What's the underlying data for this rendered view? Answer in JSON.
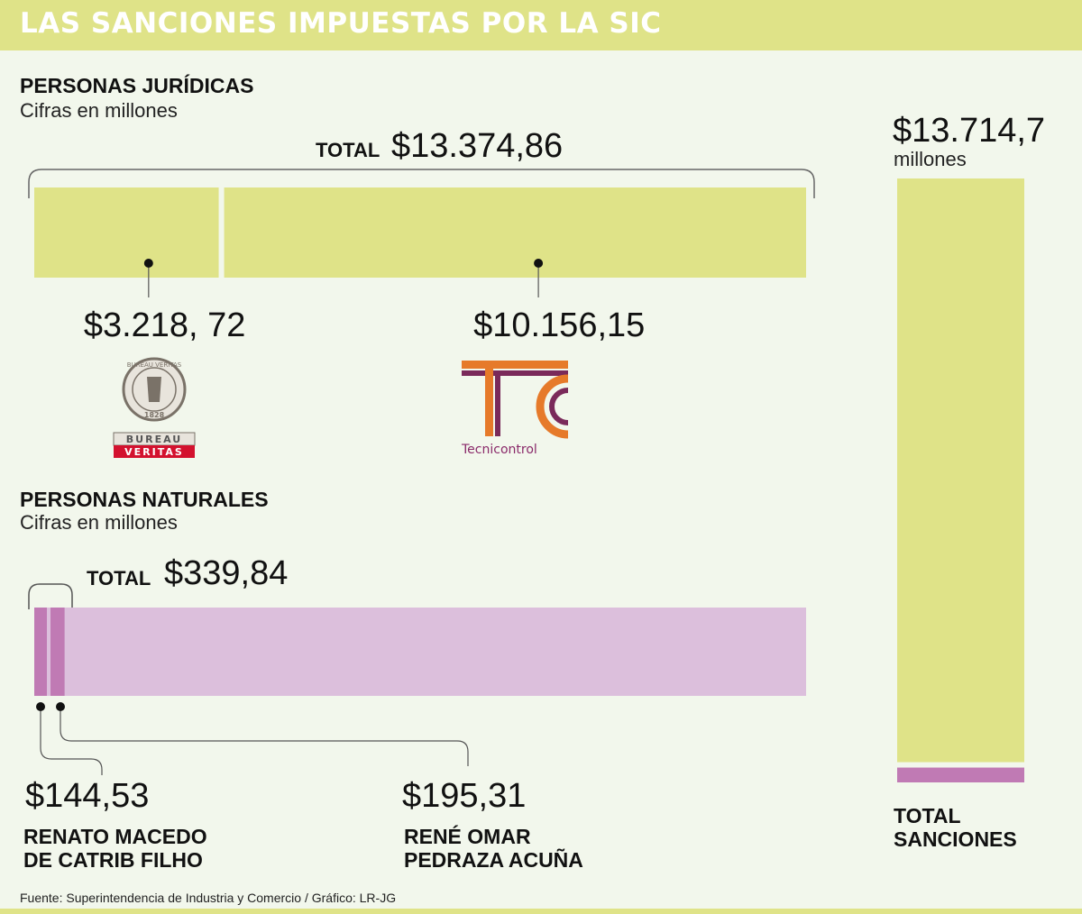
{
  "header": {
    "title": "LAS SANCIONES IMPUESTAS POR LA SIC"
  },
  "colors": {
    "green": "#dfe388",
    "purple_light": "#dcbfdc",
    "purple_dark": "#c07ab4",
    "background": "#f2f7ec"
  },
  "chart_data": [
    {
      "type": "bar",
      "title": "PERSONAS JURÍDICAS",
      "subtitle": "Cifras en millones",
      "total_label": "TOTAL",
      "total_value": "$13.374,86",
      "categories": [
        "Bureau Veritas",
        "Tecnicontrol"
      ],
      "values": [
        3218.72,
        10156.15
      ],
      "value_labels": [
        "$3.218, 72",
        "$10.156,15"
      ],
      "logos": [
        {
          "icon": "bureau-veritas-logo",
          "text_lines": [
            "BUREAU",
            "VERITAS"
          ],
          "seal_text": "BUREAU VERITAS",
          "year": "1828"
        },
        {
          "icon": "tecnicontrol-logo",
          "text": "Tecnicontrol"
        }
      ]
    },
    {
      "type": "bar",
      "title": "PERSONAS NATURALES",
      "subtitle": "Cifras en millones",
      "total_label": "TOTAL",
      "total_value": "$339,84",
      "scale_reference": 13374.86,
      "categories": [
        "RENATO MACEDO DE CATRIB FILHO",
        "RENÉ OMAR PEDRAZA ACUÑA"
      ],
      "values": [
        144.53,
        195.31
      ],
      "value_labels": [
        "$144,53",
        "$195,31"
      ],
      "names": [
        [
          "RENATO MACEDO",
          "DE CATRIB FILHO"
        ],
        [
          "RENÉ OMAR",
          "PEDRAZA ACUÑA"
        ]
      ]
    },
    {
      "type": "bar",
      "orientation": "vertical-stacked",
      "value_label": "$13.714,7",
      "unit": "millones",
      "categories": [
        "PERSONAS JURÍDICAS",
        "PERSONAS NATURALES"
      ],
      "values": [
        13374.86,
        339.84
      ],
      "total": 13714.7,
      "label_lines": [
        "TOTAL",
        "SANCIONES"
      ]
    }
  ],
  "footer": {
    "source": "Fuente: Superintendencia de Industria y Comercio / Gráfico: LR-JG"
  }
}
